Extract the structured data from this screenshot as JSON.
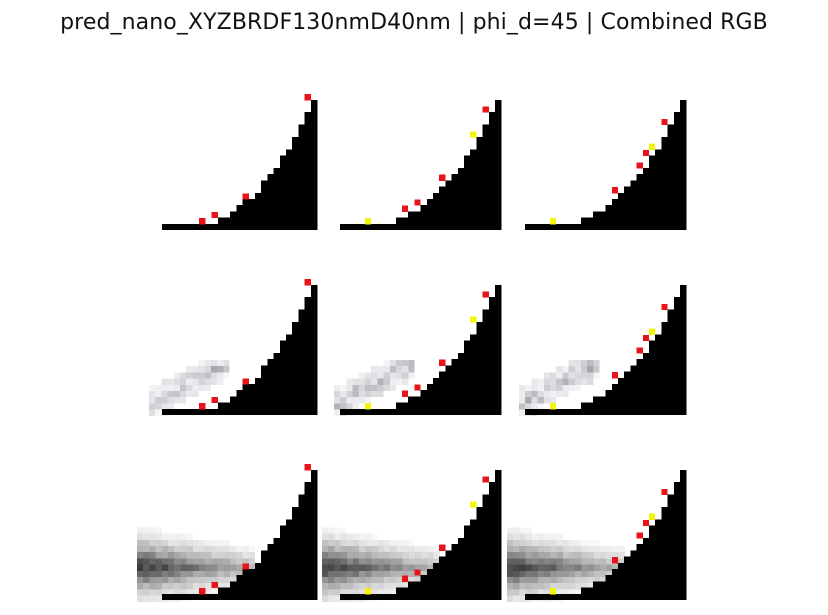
{
  "title": "pred_nano_XYZBRDF130nmD40nm | phi_d=45 | Combined RGB",
  "grid": {
    "rows": 3,
    "cols": 3
  },
  "colors": {
    "background": "#ffffff",
    "surface": "#000000",
    "marker_red": "#e8141c",
    "marker_yellow": "#f5f50a",
    "haze": "#4a4a4a"
  },
  "panels": [
    {
      "row": 0,
      "col": 0,
      "haze": "none",
      "markers": "red"
    },
    {
      "row": 0,
      "col": 1,
      "haze": "none",
      "markers": "mixed"
    },
    {
      "row": 0,
      "col": 2,
      "haze": "none",
      "markers": "mixed"
    },
    {
      "row": 1,
      "col": 0,
      "haze": "small",
      "markers": "red"
    },
    {
      "row": 1,
      "col": 1,
      "haze": "small",
      "markers": "mixed"
    },
    {
      "row": 1,
      "col": 2,
      "haze": "small",
      "markers": "mixed"
    },
    {
      "row": 2,
      "col": 0,
      "haze": "large",
      "markers": "red"
    },
    {
      "row": 2,
      "col": 1,
      "haze": "large",
      "markers": "mixed"
    },
    {
      "row": 2,
      "col": 2,
      "haze": "large",
      "markers": "mixed"
    }
  ]
}
